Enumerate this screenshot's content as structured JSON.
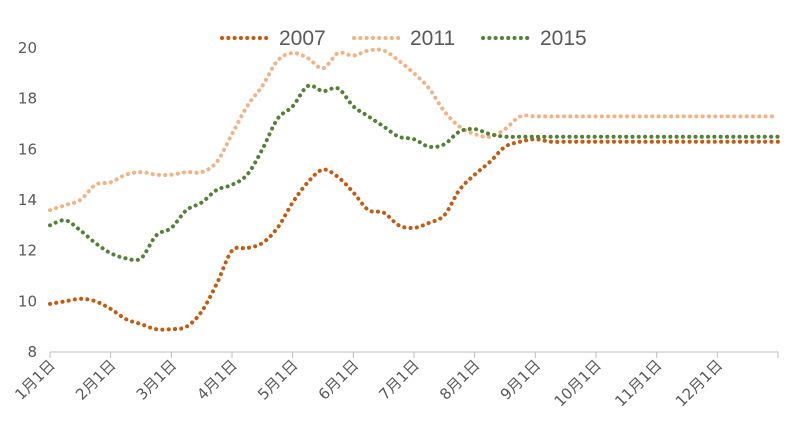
{
  "chart_data": {
    "type": "line",
    "title": "",
    "xlabel": "",
    "ylabel": "",
    "ylim": [
      8,
      20
    ],
    "yticks": [
      8,
      10,
      12,
      14,
      16,
      18,
      20
    ],
    "x_ticks": [
      "1月1日",
      "2月1日",
      "3月1日",
      "4月1日",
      "5月1日",
      "6月1日",
      "7月1日",
      "8月1日",
      "9月1日",
      "10月1日",
      "11月1日",
      "12月1日"
    ],
    "grid": false,
    "legend_position": "top-center",
    "x": [
      0,
      0.5,
      1,
      1.5,
      2,
      2.5,
      3,
      3.5,
      4,
      4.5,
      5,
      5.5,
      6,
      6.5,
      7,
      7.5,
      8,
      8.5,
      9,
      9.5,
      10,
      10.5,
      11,
      11.5,
      12,
      12.5,
      13,
      13.5,
      14,
      14.5,
      15,
      15.5,
      16,
      16.5,
      17,
      17.5,
      18,
      18.5,
      19,
      19.5,
      20,
      20.5,
      21,
      21.5,
      22,
      22.5,
      23,
      23.5,
      24
    ],
    "series": [
      {
        "name": "2007",
        "color": "#c55a11",
        "values": [
          9.9,
          10.0,
          10.1,
          10.0,
          9.7,
          9.3,
          9.1,
          8.9,
          8.9,
          9.0,
          9.6,
          10.7,
          12.0,
          12.1,
          12.3,
          12.9,
          13.9,
          14.7,
          15.2,
          14.9,
          14.3,
          13.6,
          13.5,
          13.0,
          12.9,
          13.1,
          13.4,
          14.4,
          15.0,
          15.5,
          16.1,
          16.3,
          16.4,
          16.3,
          16.3,
          16.3,
          16.3,
          16.3,
          16.3,
          16.3,
          16.3,
          16.3,
          16.3,
          16.3,
          16.3,
          16.3,
          16.3,
          16.3,
          16.3
        ]
      },
      {
        "name": "2011",
        "color": "#f4b183",
        "values": [
          13.6,
          13.8,
          14.0,
          14.6,
          14.7,
          15.0,
          15.1,
          15.0,
          15.0,
          15.1,
          15.1,
          15.5,
          16.6,
          17.7,
          18.5,
          19.5,
          19.8,
          19.6,
          19.2,
          19.8,
          19.7,
          19.9,
          19.9,
          19.5,
          19.0,
          18.4,
          17.5,
          16.9,
          16.6,
          16.5,
          16.8,
          17.3,
          17.3,
          17.3,
          17.3,
          17.3,
          17.3,
          17.3,
          17.3,
          17.3,
          17.3,
          17.3,
          17.3,
          17.3,
          17.3,
          17.3,
          17.3,
          17.3,
          17.3
        ]
      },
      {
        "name": "2015",
        "color": "#548235",
        "values": [
          13.0,
          13.2,
          12.8,
          12.3,
          11.9,
          11.7,
          11.7,
          12.6,
          12.9,
          13.6,
          13.9,
          14.4,
          14.6,
          15.0,
          16.0,
          17.2,
          17.7,
          18.5,
          18.3,
          18.4,
          17.7,
          17.3,
          16.9,
          16.5,
          16.4,
          16.1,
          16.2,
          16.7,
          16.8,
          16.6,
          16.5,
          16.5,
          16.5,
          16.5,
          16.5,
          16.5,
          16.5,
          16.5,
          16.5,
          16.5,
          16.5,
          16.5,
          16.5,
          16.5,
          16.5,
          16.5,
          16.5,
          16.5,
          16.5
        ]
      }
    ]
  }
}
